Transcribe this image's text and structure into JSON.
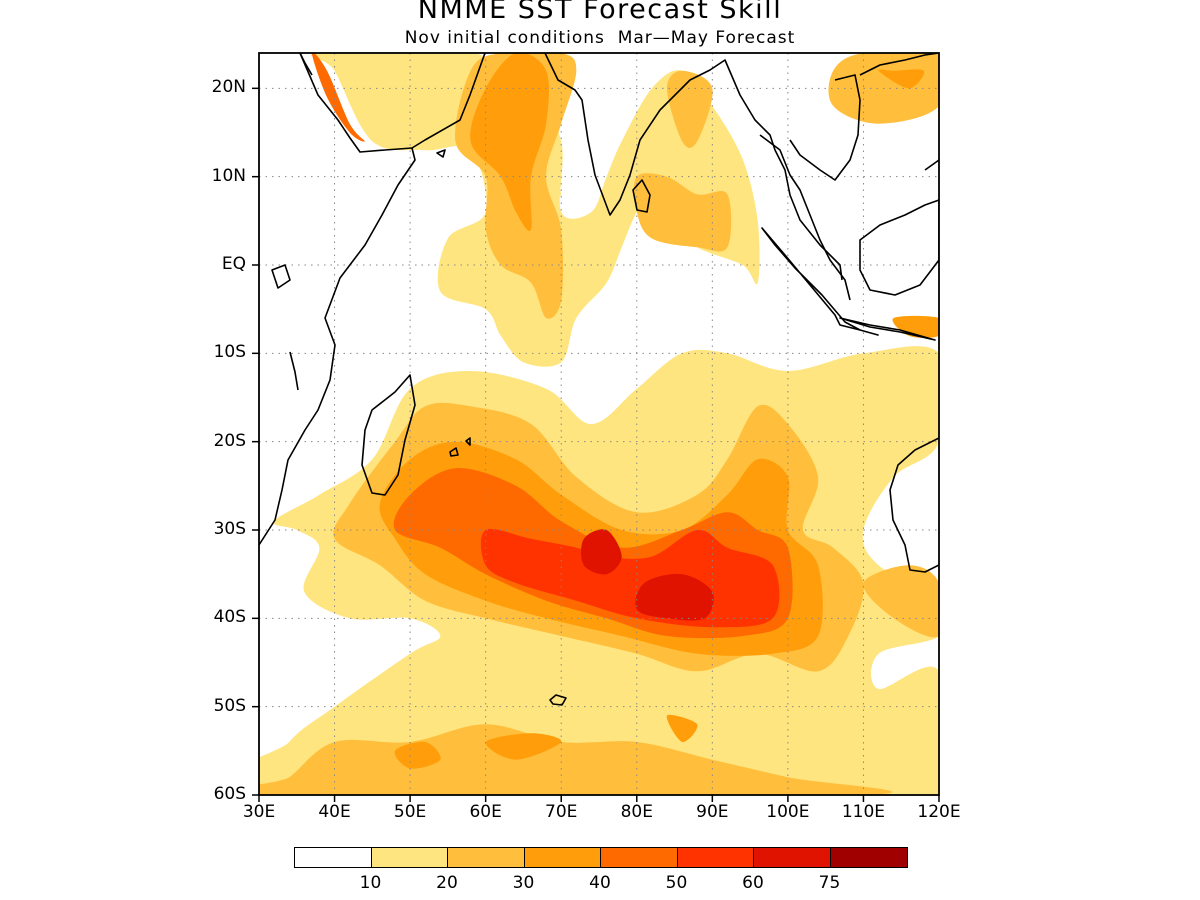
{
  "title": "NMME SST Forecast Skill",
  "subtitle": "Nov initial conditions  Mar—May Forecast",
  "y_axis": {
    "ticks": [
      "20N",
      "10N",
      "EQ",
      "10S",
      "20S",
      "30S",
      "40S",
      "50S",
      "60S"
    ],
    "lat_values": [
      20,
      10,
      0,
      -10,
      -20,
      -30,
      -40,
      -50,
      -60
    ]
  },
  "x_axis": {
    "ticks": [
      "30E",
      "40E",
      "50E",
      "60E",
      "70E",
      "80E",
      "90E",
      "100E",
      "110E",
      "120E"
    ],
    "lon_values": [
      30,
      40,
      50,
      60,
      70,
      80,
      90,
      100,
      110,
      120
    ]
  },
  "map_extent": {
    "lon_min": 30,
    "lon_max": 120,
    "lat_min": -60,
    "lat_max": 24
  },
  "grid": "dotted",
  "colorbar": {
    "levels": [
      "10",
      "20",
      "30",
      "40",
      "50",
      "60",
      "75"
    ],
    "colors": [
      "#ffffff",
      "#ffe57f",
      "#ffbf3c",
      "#ff9e0a",
      "#ff6a00",
      "#ff3300",
      "#df1300",
      "#a00000"
    ]
  },
  "legend_placement": "bottom"
}
